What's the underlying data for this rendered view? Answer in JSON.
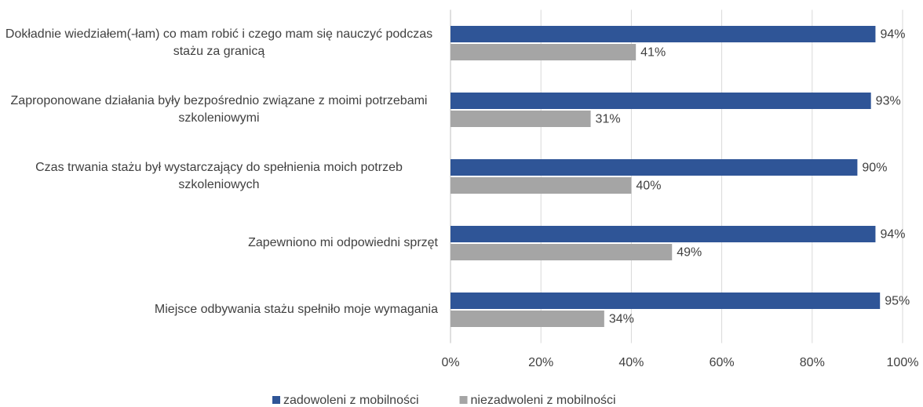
{
  "chart_data": {
    "type": "bar",
    "orientation": "horizontal",
    "categories": [
      "Dokładnie wiedziałem(-łam) co mam robić i czego mam się nauczyć podczas stażu za granicą",
      "Zaproponowane działania były bezpośrednio związane z moimi potrzebami szkoleniowymi",
      "Czas trwania stażu był wystarczający do spełnienia moich potrzeb szkoleniowych",
      "Zapewniono mi odpowiedni sprzęt",
      "Miejsce odbywania stażu spełniło moje wymagania"
    ],
    "series": [
      {
        "name": "zadowoleni z mobilności",
        "color": "#2f5597",
        "values": [
          94,
          93,
          90,
          94,
          95
        ],
        "value_labels": [
          "94%",
          "93%",
          "90%",
          "94%",
          "95%"
        ]
      },
      {
        "name": "niezadwoleni z mobilności",
        "color": "#a5a5a5",
        "values": [
          41,
          31,
          40,
          49,
          34
        ],
        "value_labels": [
          "41%",
          "31%",
          "40%",
          "49%",
          "34%"
        ]
      }
    ],
    "xlim": [
      0,
      100
    ],
    "xticks": [
      {
        "value": 0,
        "label": "0%"
      },
      {
        "value": 20,
        "label": "20%"
      },
      {
        "value": 40,
        "label": "40%"
      },
      {
        "value": 60,
        "label": "60%"
      },
      {
        "value": 80,
        "label": "80%"
      },
      {
        "value": 100,
        "label": "100%"
      }
    ],
    "grid": true,
    "legend": "bottom"
  }
}
